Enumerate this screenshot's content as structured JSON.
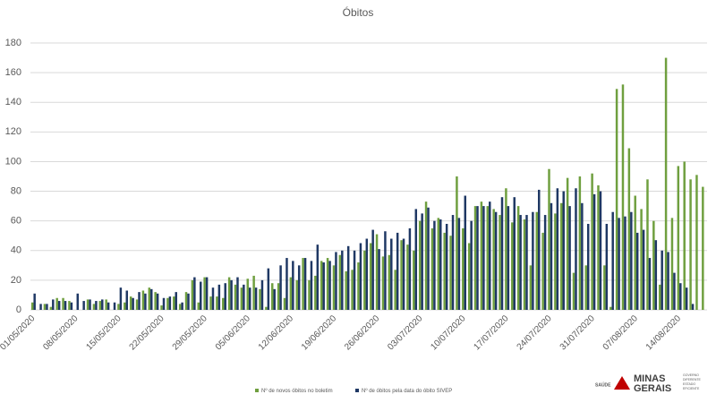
{
  "chart_data": {
    "type": "bar",
    "title": "Óbitos",
    "categories": [
      "01/05/2020",
      null,
      null,
      null,
      null,
      null,
      null,
      "08/05/2020",
      null,
      null,
      null,
      null,
      null,
      null,
      "15/05/2020",
      null,
      null,
      null,
      null,
      null,
      null,
      "22/05/2020",
      null,
      null,
      null,
      null,
      null,
      null,
      "29/05/2020",
      null,
      null,
      null,
      null,
      null,
      null,
      "05/06/2020",
      null,
      null,
      null,
      null,
      null,
      null,
      "12/06/2020",
      null,
      null,
      null,
      null,
      null,
      null,
      "19/06/2020",
      null,
      null,
      null,
      null,
      null,
      null,
      "26/06/2020",
      null,
      null,
      null,
      null,
      null,
      null,
      "03/07/2020",
      null,
      null,
      null,
      null,
      null,
      null,
      "10/07/2020",
      null,
      null,
      null,
      null,
      null,
      null,
      "17/07/2020",
      null,
      null,
      null,
      null,
      null,
      null,
      "24/07/2020",
      null,
      null,
      null,
      null,
      null,
      null,
      "31/07/2020",
      null,
      null,
      null,
      null,
      null,
      null,
      "07/08/2020",
      null,
      null,
      null,
      null,
      null,
      null,
      "14/08/2020",
      null,
      null,
      null,
      null
    ],
    "series": [
      {
        "name": "Nº de novos óbitos no boletim",
        "color": "#6f9f3f",
        "values": [
          5,
          0,
          4,
          2,
          8,
          8,
          6,
          0,
          0,
          7,
          4,
          6,
          7,
          0,
          4,
          5,
          9,
          7,
          13,
          15,
          12,
          3,
          8,
          9,
          4,
          12,
          20,
          5,
          22,
          9,
          9,
          8,
          22,
          17,
          15,
          21,
          23,
          14,
          2,
          18,
          18,
          8,
          22,
          20,
          35,
          20,
          23,
          33,
          35,
          30,
          37,
          26,
          27,
          32,
          40,
          45,
          51,
          36,
          37,
          27,
          47,
          44,
          40,
          60,
          73,
          55,
          62,
          52,
          50,
          90,
          55,
          45,
          70,
          73,
          70,
          68,
          64,
          82,
          59,
          70,
          61,
          30,
          66,
          52,
          95,
          65,
          72,
          89,
          25,
          90,
          30,
          92,
          84,
          30,
          2,
          149,
          152,
          109,
          77,
          68,
          88,
          60,
          17,
          170,
          62,
          97,
          100,
          88,
          91,
          83
        ]
      },
      {
        "name": "Nº de óbitos pela data do óbito SIVEP",
        "color": "#1f3864",
        "values": [
          11,
          4,
          4,
          7,
          6,
          6,
          5,
          11,
          6,
          7,
          6,
          7,
          5,
          5,
          15,
          13,
          8,
          12,
          11,
          14,
          11,
          8,
          9,
          12,
          5,
          11,
          22,
          19,
          22,
          15,
          17,
          18,
          20,
          22,
          17,
          15,
          15,
          20,
          28,
          14,
          30,
          35,
          33,
          30,
          35,
          33,
          44,
          32,
          33,
          39,
          40,
          43,
          40,
          45,
          48,
          54,
          41,
          53,
          48,
          52,
          48,
          55,
          68,
          65,
          69,
          60,
          61,
          58,
          64,
          62,
          77,
          60,
          70,
          70,
          73,
          66,
          76,
          70,
          76,
          64,
          64,
          66,
          81,
          64,
          72,
          82,
          80,
          70,
          82,
          72,
          58,
          78,
          80,
          58,
          66,
          62,
          63,
          66,
          52,
          54,
          35,
          47,
          40,
          39,
          25,
          18,
          15,
          4,
          null,
          null
        ]
      }
    ],
    "ylim": [
      0,
      180
    ],
    "yticks": [
      0,
      20,
      40,
      60,
      80,
      100,
      120,
      140,
      160,
      180
    ],
    "grid": true
  },
  "logo": {
    "section": "SAÚDE",
    "name_top": "MINAS",
    "name_bottom": "GERAIS",
    "tagline": [
      "GOVERNO",
      "DIFERENTE",
      "ESTADO",
      "EFICIENTE"
    ]
  }
}
